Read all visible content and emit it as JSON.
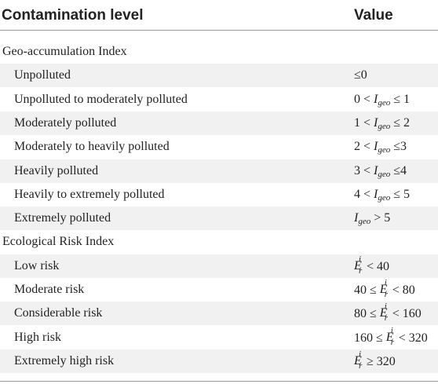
{
  "header": {
    "col1": "Contamination level",
    "col2": "Value"
  },
  "groups": [
    {
      "title": "Geo-accumulation Index",
      "rows": [
        {
          "label": "Unpolluted",
          "value": "≤0"
        },
        {
          "label": "Unpolluted to moderately polluted",
          "pre": "0 <",
          "sym": "I",
          "sub": "geo",
          "post": "≤ 1"
        },
        {
          "label": "Moderately polluted",
          "pre": "1 <",
          "sym": "I",
          "sub": "geo",
          "post": "≤ 2"
        },
        {
          "label": "Moderately to heavily polluted",
          "pre": "2 <",
          "sym": "I",
          "sub": "geo",
          "post": "≤3"
        },
        {
          "label": "Heavily polluted",
          "pre": "3 <",
          "sym": "I",
          "sub": "geo",
          "post": "≤4"
        },
        {
          "label": "Heavily to extremely polluted",
          "pre": "4 <",
          "sym": "I",
          "sub": "geo",
          "post": "≤ 5"
        },
        {
          "label": "Extremely polluted",
          "pre": "",
          "sym": "I",
          "sub": "geo",
          "post": "> 5"
        }
      ]
    },
    {
      "title": "Ecological Risk Index",
      "rows": [
        {
          "label": "Low risk",
          "pre": "",
          "sym": "E",
          "sup": "i",
          "sub": "r",
          "post": "< 40"
        },
        {
          "label": "Moderate risk",
          "pre": "40 ≤",
          "sym": "E",
          "sup": "i",
          "sub": "r",
          "post": "< 80"
        },
        {
          "label": "Considerable risk",
          "pre": "80 ≤",
          "sym": "E",
          "sup": "i",
          "sub": "r",
          "post": "< 160"
        },
        {
          "label": "High risk",
          "pre": "160 ≤",
          "sym": "E",
          "sup": "i",
          "sub": "r",
          "post": "< 320"
        },
        {
          "label": "Extremely high risk",
          "pre": "",
          "sym": "E",
          "sup": "i",
          "sub": "r",
          "post": "≥ 320"
        }
      ]
    }
  ]
}
